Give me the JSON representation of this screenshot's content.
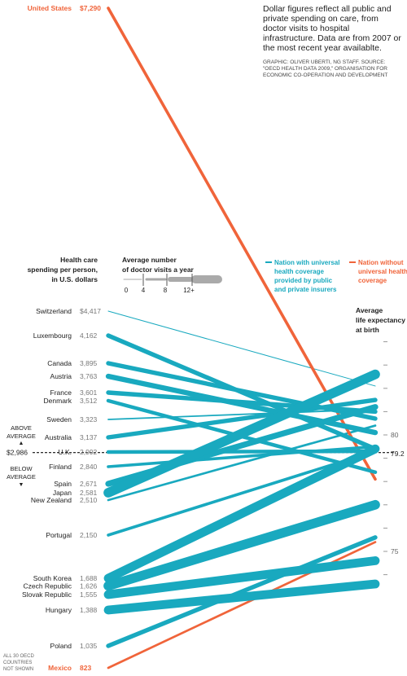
{
  "description": {
    "note": "Dollar figures reflect all public and private spending on care, from doctor visits to hospital infrastructure. Data are from 2007 or the most recent year availablte.",
    "credit": "GRAPHIC: OLIVER UBERTI, NG STAFF. SOURCE: \"OECD HEALTH DATA 2009,\" ORGANISATION FOR ECONOMIC CO-OPERATION AND DEVELOPMENT"
  },
  "colors": {
    "universal": "#19a9bf",
    "non_universal": "#f0643a",
    "text": "#222222",
    "muted": "#777777",
    "legend_gray": "#aaaaaa"
  },
  "chart_data": {
    "type": "slope",
    "left_axis": {
      "title": [
        "Health care",
        "spending per person,",
        "in U.S. dollars"
      ],
      "range": [
        823,
        7290
      ]
    },
    "right_axis": {
      "title": [
        "Average",
        "life expectancy",
        "at birth"
      ],
      "range": [
        73.5,
        84
      ],
      "ticks": [
        {
          "value": 80,
          "label": "80"
        },
        {
          "value": 75,
          "label": "75"
        }
      ],
      "average": {
        "value": 79.2,
        "label": "79.2"
      }
    },
    "thickness_legend": {
      "title": [
        "Average number",
        "of doctor visits a year"
      ],
      "labels": [
        "0",
        "4",
        "8",
        "12+"
      ],
      "values": [
        0,
        4,
        8,
        12
      ]
    },
    "type_legend": {
      "universal": [
        "Nation with universal",
        "health coverage",
        "provided by public",
        "and private insurers"
      ],
      "non_universal": [
        "Nation without",
        "universal health",
        "coverage"
      ]
    },
    "average_spending": {
      "value": 2986,
      "label": "$2,986",
      "above": [
        "ABOVE",
        "AVERAGE"
      ],
      "below": [
        "BELOW",
        "AVERAGE"
      ]
    },
    "footnote": [
      "ALL 30 OECD",
      "COUNTRIES",
      "NOT SHOWN"
    ],
    "series": [
      {
        "country": "United States",
        "spending": 7290,
        "spending_label": "$7,290",
        "life": 78.1,
        "visits": 4,
        "universal": false
      },
      {
        "country": "Switzerland",
        "spending": 4417,
        "spending_label": "$4,417",
        "life": 82.1,
        "visits": 1,
        "universal": true
      },
      {
        "country": "Luxembourg",
        "spending": 4162,
        "spending_label": "4,162",
        "life": 79.4,
        "visits": 6,
        "universal": true
      },
      {
        "country": "Canada",
        "spending": 3895,
        "spending_label": "3,895",
        "life": 80.7,
        "visits": 6,
        "universal": true
      },
      {
        "country": "Austria",
        "spending": 3763,
        "spending_label": "3,763",
        "life": 80.1,
        "visits": 7,
        "universal": true
      },
      {
        "country": "France",
        "spending": 3601,
        "spending_label": "3,601",
        "life": 81,
        "visits": 6,
        "universal": true
      },
      {
        "country": "Denmark",
        "spending": 3512,
        "spending_label": "3,512",
        "life": 78.4,
        "visits": 5,
        "universal": true
      },
      {
        "country": "Sweden",
        "spending": 3323,
        "spending_label": "3,323",
        "life": 81.1,
        "visits": 2,
        "universal": true
      },
      {
        "country": "Australia",
        "spending": 3137,
        "spending_label": "3,137",
        "life": 81.5,
        "visits": 6,
        "universal": true
      },
      {
        "country": "U.K.",
        "spending": 2992,
        "spending_label": "2,992",
        "life": 79.3,
        "visits": 5,
        "universal": true
      },
      {
        "country": "Finland",
        "spending": 2840,
        "spending_label": "2,840",
        "life": 79.5,
        "visits": 4,
        "universal": true
      },
      {
        "country": "Spain",
        "spending": 2671,
        "spending_label": "2,671",
        "life": 81.2,
        "visits": 8,
        "universal": true
      },
      {
        "country": "Japan",
        "spending": 2581,
        "spending_label": "2,581",
        "life": 82.6,
        "visits": 13,
        "universal": true
      },
      {
        "country": "New Zealand",
        "spending": 2510,
        "spending_label": "2,510",
        "life": 80.4,
        "visits": 3,
        "universal": true
      },
      {
        "country": "Portugal",
        "spending": 2150,
        "spending_label": "2,150",
        "life": 79.3,
        "visits": 4,
        "universal": true
      },
      {
        "country": "South Korea",
        "spending": 1688,
        "spending_label": "1,688",
        "life": 79.4,
        "visits": 12,
        "universal": true
      },
      {
        "country": "Czech Republic",
        "spending": 1626,
        "spending_label": "1,626",
        "life": 77,
        "visits": 13,
        "universal": true
      },
      {
        "country": "Slovak Republic",
        "spending": 1555,
        "spending_label": "1,555",
        "life": 74.6,
        "visits": 12,
        "universal": true
      },
      {
        "country": "Hungary",
        "spending": 1388,
        "spending_label": "1,388",
        "life": 73.6,
        "visits": 12,
        "universal": true
      },
      {
        "country": "Poland",
        "spending": 1035,
        "spending_label": "1,035",
        "life": 75.6,
        "visits": 6,
        "universal": true
      },
      {
        "country": "Mexico",
        "spending": 823,
        "spending_label": "823",
        "life": 75.4,
        "visits": 3,
        "universal": false
      }
    ]
  }
}
